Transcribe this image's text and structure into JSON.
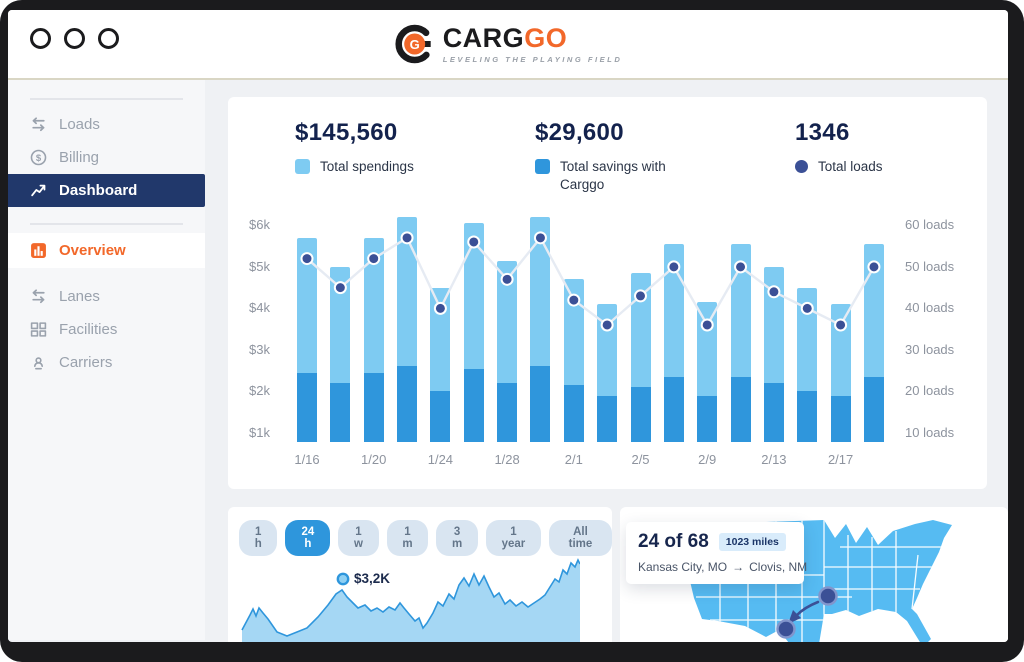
{
  "brand": {
    "word_black": "CARG",
    "word_orange": "GO",
    "tagline": "LEVELING THE PLAYING FIELD",
    "emblem_letter": "G"
  },
  "colors": {
    "accent_orange": "#f2682a",
    "bar_light": "#7ecbf2",
    "bar_dark": "#2f96dc",
    "nav_navy": "#21386b",
    "dot_navy": "#3b5096",
    "map_blue": "#56bbf2"
  },
  "sidebar": {
    "items": [
      {
        "label": "Loads",
        "icon": "swap-arrows-icon",
        "active": false
      },
      {
        "label": "Billing",
        "icon": "dollar-circle-icon",
        "active": false
      },
      {
        "label": "Dashboard",
        "icon": "trend-up-icon",
        "active": true
      }
    ],
    "sub_items": [
      {
        "label": "Overview",
        "icon": "bar-chart-icon",
        "active": true
      },
      {
        "label": "Lanes",
        "icon": "swap-arrows-icon",
        "active": false
      },
      {
        "label": "Facilities",
        "icon": "grid-icon",
        "active": false
      },
      {
        "label": "Carriers",
        "icon": "carrier-icon",
        "active": false
      }
    ]
  },
  "stats": [
    {
      "value": "$145,560",
      "label": "Total spendings",
      "marker": "square",
      "color": "#7ecbf2"
    },
    {
      "value": "$29,600",
      "label": "Total savings with Carggo",
      "marker": "square",
      "color": "#2f96dc"
    },
    {
      "value": "1346",
      "label": "Total loads",
      "marker": "circle",
      "color": "#3b5096"
    }
  ],
  "filters": {
    "options": [
      "1 h",
      "24 h",
      "1 w",
      "1 m",
      "3 m",
      "1 year",
      "All time"
    ],
    "active_index": 1
  },
  "route_card": {
    "count": "24 of 68",
    "distance_badge": "1023 miles",
    "origin": "Kansas City, MO",
    "arrow": "→",
    "destination": "Clovis, NM"
  },
  "chart_data": [
    {
      "type": "bar",
      "title": "Daily spendings and savings with loads overlay",
      "x_tick_labels": [
        "1/16",
        "1/20",
        "1/24",
        "1/28",
        "2/1",
        "2/5",
        "2/9",
        "2/13",
        "2/17"
      ],
      "x_tick_every_other_bar": true,
      "y_axis_left_labels": [
        "$6k",
        "$5k",
        "$4k",
        "$3k",
        "$2k",
        "$1k"
      ],
      "y_axis_right_labels": [
        "60 loads",
        "50 loads",
        "40 loads",
        "30 loads",
        "20 loads",
        "10 loads"
      ],
      "ylim_left_dollars_k": [
        0.78,
        6.32
      ],
      "ylim_right_loads": [
        7.8,
        63.2
      ],
      "legend_position": "top",
      "grid": false,
      "series": [
        {
          "name": "Total spendings",
          "unit": "$k",
          "style": "bar-light",
          "values": [
            5.7,
            5.0,
            5.7,
            6.2,
            4.5,
            6.05,
            5.15,
            6.2,
            4.7,
            4.1,
            4.85,
            5.55,
            4.15,
            5.55,
            5.0,
            4.5,
            4.1,
            5.55
          ]
        },
        {
          "name": "Total savings with Carggo",
          "unit": "$k",
          "style": "bar-dark",
          "values": [
            2.45,
            2.2,
            2.45,
            2.6,
            2.0,
            2.55,
            2.2,
            2.6,
            2.15,
            1.9,
            2.1,
            2.35,
            1.9,
            2.35,
            2.2,
            2.0,
            1.9,
            2.35
          ]
        },
        {
          "name": "Total loads",
          "unit": "loads",
          "style": "line-dots",
          "values": [
            52,
            45,
            52,
            57,
            40,
            56,
            47,
            57,
            42,
            36,
            43,
            50,
            36,
            50,
            44,
            40,
            36,
            50
          ]
        }
      ]
    },
    {
      "type": "area",
      "title": "Spending trend for selected range (24 h)",
      "marker_label": "$3,2K",
      "marker_point": [
        103,
        72
      ],
      "points": [
        [
          2,
          123
        ],
        [
          10,
          108
        ],
        [
          13,
          102
        ],
        [
          16,
          109
        ],
        [
          19,
          101
        ],
        [
          23,
          106
        ],
        [
          28,
          112
        ],
        [
          37,
          125
        ],
        [
          47,
          129
        ],
        [
          57,
          125
        ],
        [
          67,
          121
        ],
        [
          78,
          110
        ],
        [
          88,
          98
        ],
        [
          96,
          87
        ],
        [
          102,
          83
        ],
        [
          107,
          90
        ],
        [
          112,
          95
        ],
        [
          118,
          101
        ],
        [
          125,
          98
        ],
        [
          131,
          104
        ],
        [
          137,
          101
        ],
        [
          143,
          105
        ],
        [
          149,
          100
        ],
        [
          155,
          103
        ],
        [
          160,
          96
        ],
        [
          164,
          101
        ],
        [
          169,
          107
        ],
        [
          175,
          114
        ],
        [
          179,
          111
        ],
        [
          183,
          121
        ],
        [
          187,
          116
        ],
        [
          193,
          106
        ],
        [
          198,
          95
        ],
        [
          203,
          99
        ],
        [
          209,
          87
        ],
        [
          214,
          92
        ],
        [
          219,
          78
        ],
        [
          224,
          71
        ],
        [
          229,
          79
        ],
        [
          234,
          67
        ],
        [
          239,
          78
        ],
        [
          244,
          69
        ],
        [
          249,
          80
        ],
        [
          254,
          90
        ],
        [
          259,
          86
        ],
        [
          265,
          97
        ],
        [
          270,
          93
        ],
        [
          276,
          99
        ],
        [
          282,
          95
        ],
        [
          288,
          100
        ],
        [
          294,
          96
        ],
        [
          300,
          92
        ],
        [
          305,
          88
        ],
        [
          310,
          80
        ],
        [
          315,
          72
        ],
        [
          319,
          75
        ],
        [
          323,
          63
        ],
        [
          327,
          67
        ],
        [
          331,
          56
        ],
        [
          335,
          60
        ],
        [
          338,
          53
        ],
        [
          340,
          57
        ]
      ]
    }
  ]
}
